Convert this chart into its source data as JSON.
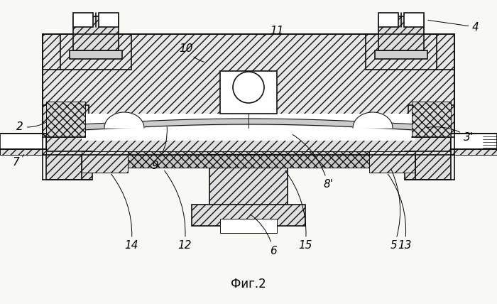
{
  "title": "Фиг.2",
  "bg": "#f5f5f0",
  "lc": "#1a1a1a"
}
